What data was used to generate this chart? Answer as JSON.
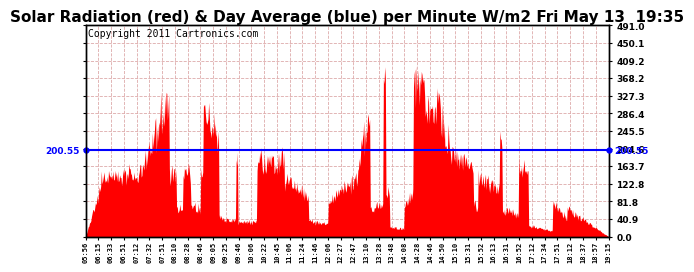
{
  "title": "Solar Radiation (red) & Day Average (blue) per Minute W/m2 Fri May 13  19:35",
  "copyright_text": "Copyright 2011 Cartronics.com",
  "avg_value": 200.55,
  "y_max": 491.0,
  "y_min": 0.0,
  "y_ticks_right": [
    0.0,
    40.9,
    81.8,
    122.8,
    163.7,
    204.6,
    245.5,
    286.4,
    327.3,
    368.2,
    409.2,
    450.1,
    491.0
  ],
  "x_tick_labels": [
    "05:56",
    "06:15",
    "06:33",
    "06:51",
    "07:12",
    "07:32",
    "07:51",
    "08:10",
    "08:28",
    "08:46",
    "09:05",
    "09:25",
    "09:46",
    "10:06",
    "10:22",
    "10:45",
    "11:06",
    "11:24",
    "11:46",
    "12:06",
    "12:27",
    "12:47",
    "13:10",
    "13:28",
    "13:48",
    "14:08",
    "14:28",
    "14:46",
    "14:50",
    "15:10",
    "15:31",
    "15:52",
    "16:13",
    "16:31",
    "16:52",
    "17:12",
    "17:34",
    "17:51",
    "18:12",
    "18:37",
    "18:57",
    "19:15"
  ],
  "bar_color": "#FF0000",
  "line_color": "#0000FF",
  "grid_color": "#DDAAAA",
  "background_color": "#FFFFFF",
  "title_fontsize": 11,
  "copyright_fontsize": 7
}
